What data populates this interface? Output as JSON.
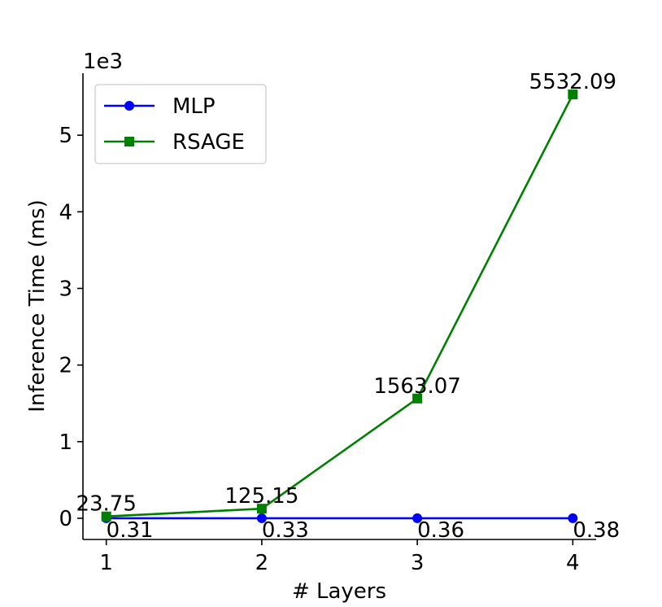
{
  "chart_data": {
    "type": "line",
    "xlabel": "# Layers",
    "ylabel": "Inference Time (ms)",
    "y_offset_label": "1e3",
    "x": [
      1,
      2,
      3,
      4
    ],
    "x_ticks": [
      1,
      2,
      3,
      4
    ],
    "y_ticks": [
      0,
      1,
      2,
      3,
      4,
      5
    ],
    "y_tick_labels": [
      "0",
      "1",
      "2",
      "3",
      "4",
      "5"
    ],
    "xlim": [
      0.85,
      4.15
    ],
    "ylim": [
      -276.5,
      5808.7
    ],
    "grid": false,
    "legend_placement": "top-left",
    "series": [
      {
        "name": "MLP",
        "color": "#0000ff",
        "marker": "circle",
        "values": [
          0.31,
          0.33,
          0.36,
          0.38
        ],
        "labels": [
          "0.31",
          "0.33",
          "0.36",
          "0.38"
        ],
        "label_position": "below"
      },
      {
        "name": "RSAGE",
        "color": "#008000",
        "marker": "square",
        "values": [
          23.75,
          125.15,
          1563.07,
          5532.09
        ],
        "labels": [
          "23.75",
          "125.15",
          "1563.07",
          "5532.09"
        ],
        "label_position": "above"
      }
    ]
  }
}
